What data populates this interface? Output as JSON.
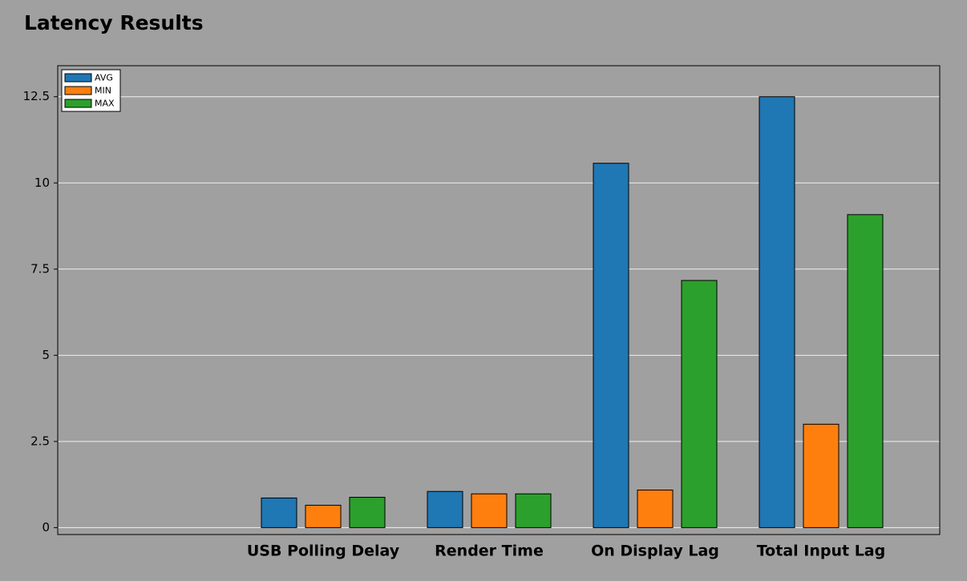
{
  "chart_data": {
    "type": "bar",
    "title": "Latency Results",
    "categories": [
      null,
      "USB Polling Delay",
      "Render Time",
      "On Display Lag",
      "Total Input Lag"
    ],
    "series": [
      {
        "name": "AVG",
        "color": "#1f77b4",
        "values": [
          null,
          0.86,
          1.05,
          10.57,
          12.5
        ]
      },
      {
        "name": "MIN",
        "color": "#ff7f0e",
        "values": [
          null,
          0.65,
          0.98,
          1.09,
          3.0
        ]
      },
      {
        "name": "MAX",
        "color": "#2ca02c",
        "values": [
          null,
          0.88,
          0.98,
          7.17,
          9.08
        ]
      }
    ],
    "ylim": [
      -0.2,
      13.4
    ],
    "yticks": [
      0,
      2.5,
      5,
      7.5,
      10,
      12.5
    ],
    "grid": true,
    "legend": "upper left"
  }
}
